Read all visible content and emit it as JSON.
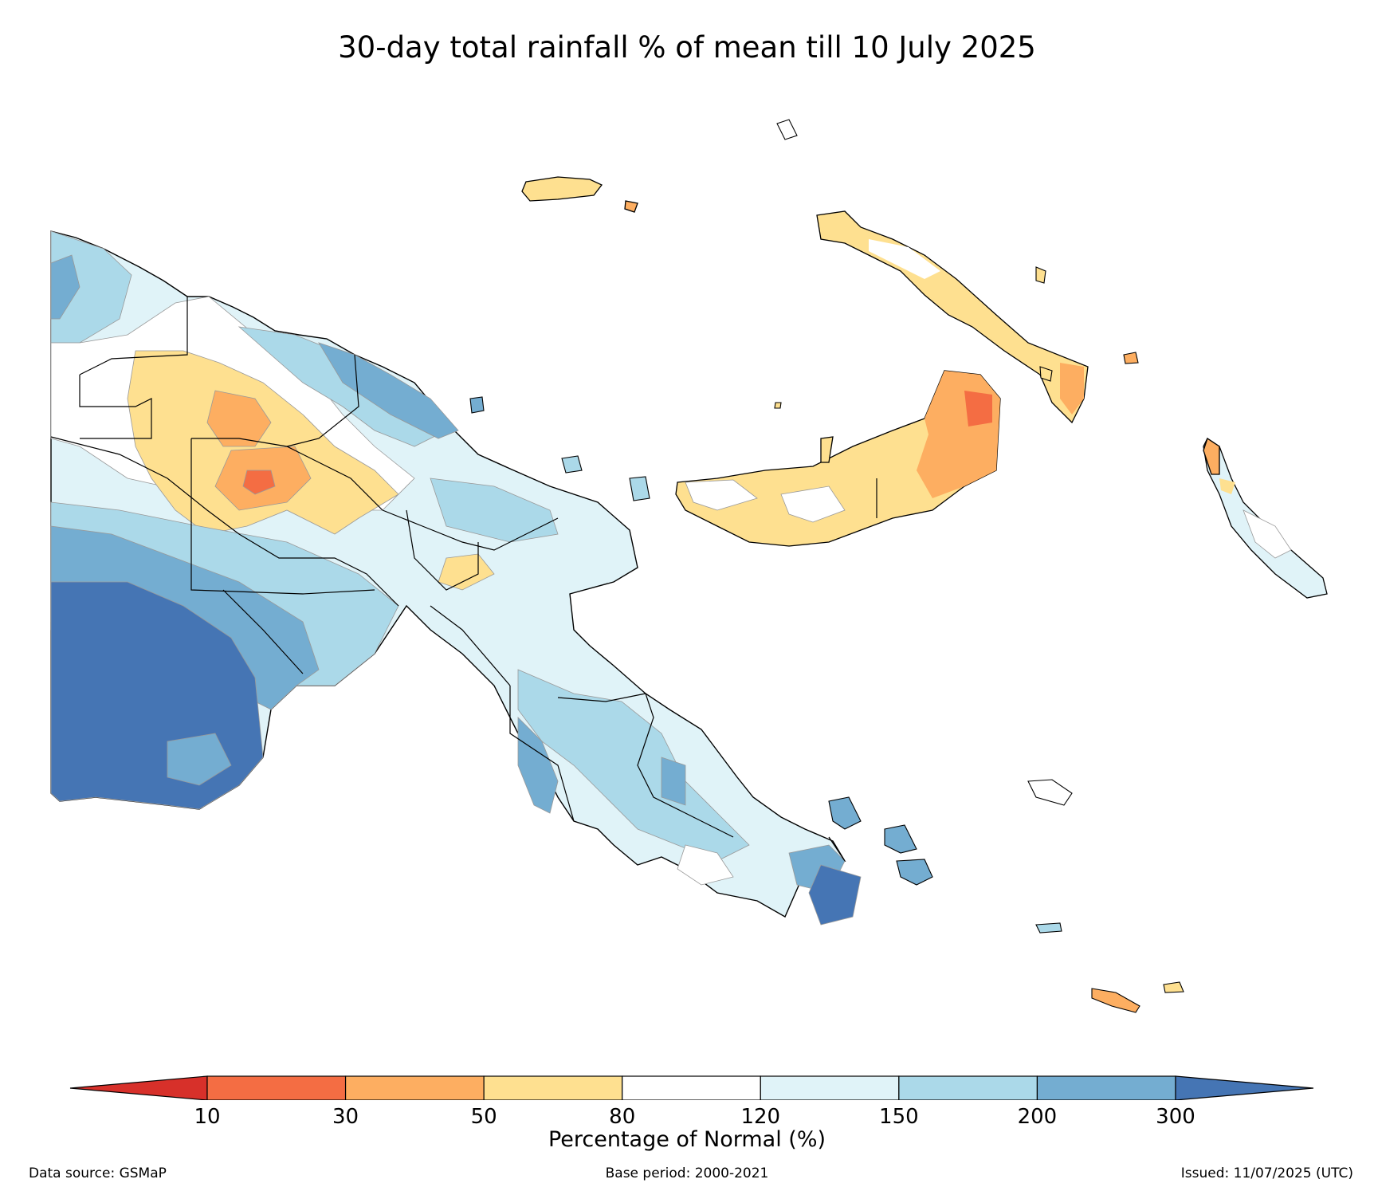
{
  "title": "30-day total rainfall % of mean till 10 July 2025",
  "colorbar": {
    "label": "Percentage of Normal (%)",
    "ticks": [
      "10",
      "30",
      "50",
      "80",
      "120",
      "150",
      "200",
      "300"
    ],
    "colors": {
      "below_10": "#d7302a",
      "c10_30": "#f46d43",
      "c30_50": "#fdae61",
      "c50_80": "#fee090",
      "c80_120": "#ffffff",
      "c120_150": "#e0f3f8",
      "c150_200": "#abd9e9",
      "c200_300": "#74add1",
      "above_300": "#4575b4"
    }
  },
  "footer": {
    "source": "Data source: GSMaP",
    "base_period": "Base period: 2000-2021",
    "issued": "Issued: 11/07/2025 (UTC)"
  }
}
